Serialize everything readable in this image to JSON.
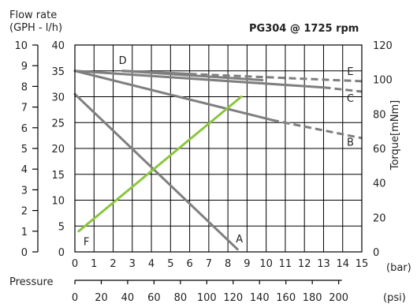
{
  "chart_data": {
    "type": "line",
    "title": "PG304 @ 1725 rpm",
    "y_left_label": [
      "Flow rate",
      "(GPH - l/h)"
    ],
    "y_right_label": "Torque[mNm]",
    "x_label": "Pressure",
    "x_unit_bar": "(bar)",
    "x_unit_psi": "(psi)",
    "xlim": [
      0,
      15
    ],
    "ylim_lh": [
      0,
      40
    ],
    "ylim_gph": [
      0,
      10
    ],
    "ylim_torque": [
      0,
      120
    ],
    "grid": true,
    "x_ticks_bar": [
      "0",
      "1",
      "2",
      "3",
      "4",
      "5",
      "6",
      "7",
      "8",
      "9",
      "10",
      "11",
      "12",
      "13",
      "14",
      "15"
    ],
    "y_ticks_lh": [
      "0",
      "5",
      "10",
      "15",
      "20",
      "25",
      "30",
      "35",
      "40"
    ],
    "y_ticks_gph": [
      "0",
      "1",
      "2",
      "3",
      "4",
      "5",
      "6",
      "7",
      "8",
      "9",
      "10"
    ],
    "y_ticks_torque": [
      "0",
      "20",
      "40",
      "60",
      "80",
      "100",
      "120"
    ],
    "psi_ticks": [
      {
        "label": "0",
        "bar": 0
      },
      {
        "label": "20",
        "bar": 1.379
      },
      {
        "label": "40",
        "bar": 2.758
      },
      {
        "label": "60",
        "bar": 4.137
      },
      {
        "label": "80",
        "bar": 5.516
      },
      {
        "label": "100",
        "bar": 6.895
      },
      {
        "label": "120",
        "bar": 8.274
      },
      {
        "label": "140",
        "bar": 9.653
      },
      {
        "label": "160",
        "bar": 11.032
      },
      {
        "label": "180",
        "bar": 12.411
      },
      {
        "label": "200",
        "bar": 13.79
      }
    ],
    "series": [
      {
        "name": "A",
        "color": "#7f7f7f",
        "axis": "flow",
        "points": [
          [
            0,
            30.5
          ],
          [
            8.5,
            0.5
          ]
        ]
      },
      {
        "name": "B",
        "color": "#7f7f7f",
        "axis": "flow",
        "points": [
          [
            0,
            35
          ],
          [
            10.3,
            25.5
          ]
        ],
        "dashed_points": [
          [
            10.3,
            25.5
          ],
          [
            15,
            22
          ]
        ]
      },
      {
        "name": "C",
        "color": "#7f7f7f",
        "axis": "flow",
        "points": [
          [
            0,
            35
          ],
          [
            13,
            31.8
          ]
        ],
        "dashed_points": [
          [
            13,
            31.8
          ],
          [
            15,
            31
          ]
        ]
      },
      {
        "name": "D",
        "color": "#7f7f7f",
        "axis": "flow",
        "points": [
          [
            2.5,
            35
          ],
          [
            9.8,
            33.2
          ]
        ]
      },
      {
        "name": "E",
        "color": "#7f7f7f",
        "axis": "flow",
        "points": [
          [
            2.5,
            35
          ],
          [
            6,
            34.4
          ]
        ],
        "dashed_points": [
          [
            6,
            34.4
          ],
          [
            15,
            33
          ]
        ]
      },
      {
        "name": "F",
        "color": "#8cc63f",
        "axis": "flow",
        "points": [
          [
            0.2,
            4
          ],
          [
            8.7,
            30
          ]
        ]
      }
    ],
    "curve_labels": [
      {
        "text": "A",
        "x": 8.6,
        "y": 1.8
      },
      {
        "text": "B",
        "x": 14.4,
        "y": 20.5
      },
      {
        "text": "C",
        "x": 14.4,
        "y": 29.0
      },
      {
        "text": "D",
        "x": 2.5,
        "y": 36.3
      },
      {
        "text": "E",
        "x": 14.4,
        "y": 34.2
      },
      {
        "text": "F",
        "x": 0.6,
        "y": 1.3
      }
    ]
  }
}
